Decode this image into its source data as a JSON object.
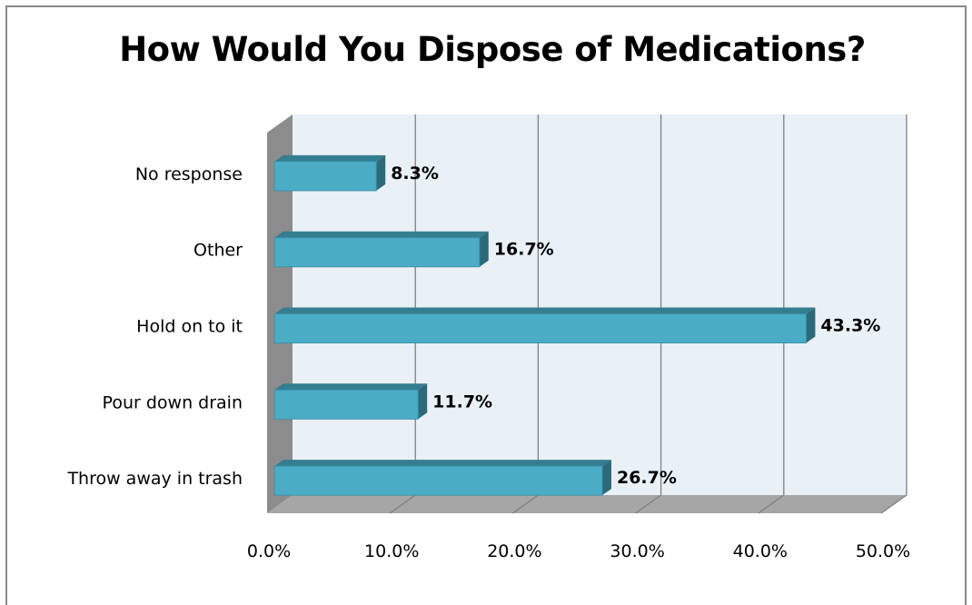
{
  "chart_data": {
    "type": "bar",
    "orientation": "horizontal",
    "title": "How Would You Dispose of Medications?",
    "categories": [
      "No response",
      "Other",
      "Hold on to it",
      "Pour down drain",
      "Throw away in trash"
    ],
    "values": [
      8.3,
      16.7,
      43.3,
      11.7,
      26.7
    ],
    "data_labels": [
      "8.3%",
      "16.7%",
      "43.3%",
      "11.7%",
      "26.7%"
    ],
    "x_ticks": [
      "0.0%",
      "10.0%",
      "20.0%",
      "30.0%",
      "40.0%",
      "50.0%"
    ],
    "xlim": [
      0,
      50
    ],
    "grid": true,
    "legend": "none",
    "colors": {
      "bar_front": "#4bacc6",
      "bar_top": "#357d90",
      "bar_side": "#2c6a7a",
      "plot_back": "#e9f1f7",
      "wall_side": "#8c8c8c",
      "floor": "#a6a6a6",
      "gridline": "#7f7f7f"
    }
  }
}
